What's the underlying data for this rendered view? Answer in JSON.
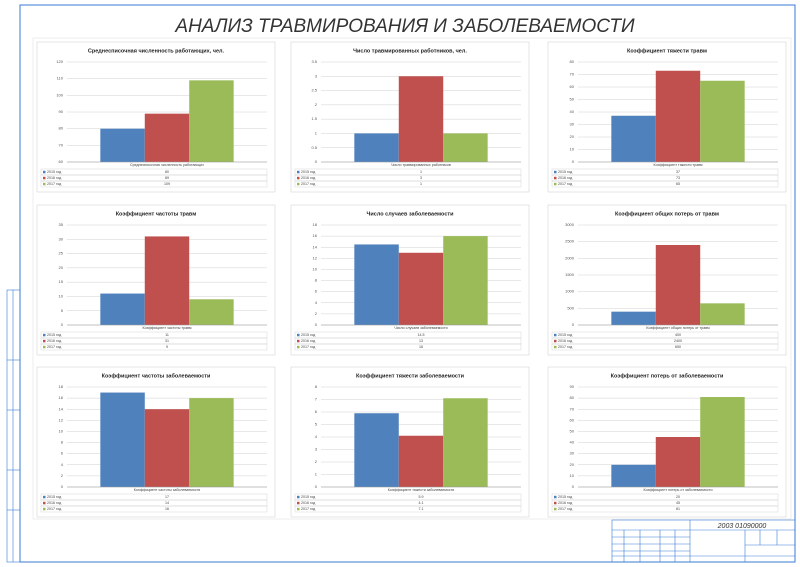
{
  "header": {
    "title": "АНАЛИЗ ТРАВМИРОВАНИЯ И ЗАБОЛЕВАЕМОСТИ"
  },
  "stamp": {
    "code": "2003 01090000"
  },
  "chart_data": [
    {
      "type": "bar",
      "title": "Среднесписочная численность работающих, чел.",
      "categories": [
        "Среднесписочная численность работающих"
      ],
      "series": [
        {
          "name": "2015 год",
          "color": "#4f81bd",
          "values": [
            80
          ]
        },
        {
          "name": "2016 год",
          "color": "#c0504d",
          "values": [
            89
          ]
        },
        {
          "name": "2017 год",
          "color": "#9bbb59",
          "values": [
            109
          ]
        }
      ],
      "ylim": [
        60,
        120
      ],
      "yticks": [
        60,
        70,
        80,
        90,
        100,
        110,
        120
      ],
      "grid": true
    },
    {
      "type": "bar",
      "title": "Число травмированных работников, чел.",
      "categories": [
        "Число травмированных работников"
      ],
      "series": [
        {
          "name": "2015 год",
          "color": "#4f81bd",
          "values": [
            1
          ]
        },
        {
          "name": "2016 год",
          "color": "#c0504d",
          "values": [
            3
          ]
        },
        {
          "name": "2017 год",
          "color": "#9bbb59",
          "values": [
            1
          ]
        }
      ],
      "ylim": [
        0,
        3.5
      ],
      "yticks": [
        0,
        0.5,
        1,
        1.5,
        2,
        2.5,
        3,
        3.5
      ],
      "grid": true
    },
    {
      "type": "bar",
      "title": "Коэффициент тяжести травм",
      "categories": [
        "Коэффициент тяжести травм"
      ],
      "series": [
        {
          "name": "2015 год",
          "color": "#4f81bd",
          "values": [
            37
          ]
        },
        {
          "name": "2016 год",
          "color": "#c0504d",
          "values": [
            73
          ]
        },
        {
          "name": "2017 год",
          "color": "#9bbb59",
          "values": [
            65
          ]
        }
      ],
      "ylim": [
        0,
        80
      ],
      "yticks": [
        0,
        10,
        20,
        30,
        40,
        50,
        60,
        70,
        80
      ],
      "grid": true
    },
    {
      "type": "bar",
      "title": "Коэффициент частоты травм",
      "categories": [
        "Коэффициент частоты травм"
      ],
      "series": [
        {
          "name": "2015 год",
          "color": "#4f81bd",
          "values": [
            11
          ]
        },
        {
          "name": "2016 год",
          "color": "#c0504d",
          "values": [
            31
          ]
        },
        {
          "name": "2017 год",
          "color": "#9bbb59",
          "values": [
            9
          ]
        }
      ],
      "ylim": [
        0,
        35
      ],
      "yticks": [
        0,
        5,
        10,
        15,
        20,
        25,
        30,
        35
      ],
      "grid": true
    },
    {
      "type": "bar",
      "title": "Число случаев заболеваемости",
      "categories": [
        "Число случаев заболеваемости"
      ],
      "series": [
        {
          "name": "2015 год",
          "color": "#4f81bd",
          "values": [
            14.5
          ]
        },
        {
          "name": "2016 год",
          "color": "#c0504d",
          "values": [
            13
          ]
        },
        {
          "name": "2017 год",
          "color": "#9bbb59",
          "values": [
            16
          ]
        }
      ],
      "ylim": [
        0,
        18
      ],
      "yticks": [
        0,
        2,
        4,
        6,
        8,
        10,
        12,
        14,
        16,
        18
      ],
      "grid": true
    },
    {
      "type": "bar",
      "title": "Коэффициент общих потерь от травм",
      "categories": [
        "Коэффициент общих потерь от травм"
      ],
      "series": [
        {
          "name": "2015 год",
          "color": "#4f81bd",
          "values": [
            400
          ]
        },
        {
          "name": "2016 год",
          "color": "#c0504d",
          "values": [
            2400
          ]
        },
        {
          "name": "2017 год",
          "color": "#9bbb59",
          "values": [
            650
          ]
        }
      ],
      "ylim": [
        0,
        3000
      ],
      "yticks": [
        0,
        500,
        1000,
        1500,
        2000,
        2500,
        3000
      ],
      "grid": true
    },
    {
      "type": "bar",
      "title": "Коэффициент частоты заболеваемости",
      "categories": [
        "Коэффициент частоты заболеваемости"
      ],
      "series": [
        {
          "name": "2015 год",
          "color": "#4f81bd",
          "values": [
            17
          ]
        },
        {
          "name": "2016 год",
          "color": "#c0504d",
          "values": [
            14
          ]
        },
        {
          "name": "2017 год",
          "color": "#9bbb59",
          "values": [
            16
          ]
        }
      ],
      "ylim": [
        0,
        18
      ],
      "yticks": [
        0,
        2,
        4,
        6,
        8,
        10,
        12,
        14,
        16,
        18
      ],
      "grid": true
    },
    {
      "type": "bar",
      "title": "Коэффициент тяжести заболеваемости",
      "categories": [
        "Коэффициент тяжести заболеваемости"
      ],
      "series": [
        {
          "name": "2015 год",
          "color": "#4f81bd",
          "values": [
            5.9
          ]
        },
        {
          "name": "2016 год",
          "color": "#c0504d",
          "values": [
            4.1
          ]
        },
        {
          "name": "2017 год",
          "color": "#9bbb59",
          "values": [
            7.1
          ]
        }
      ],
      "ylim": [
        0,
        8
      ],
      "yticks": [
        0,
        1,
        2,
        3,
        4,
        5,
        6,
        7,
        8
      ],
      "grid": true
    },
    {
      "type": "bar",
      "title": "Коэффициент потерь от заболеваемости",
      "categories": [
        "Коэффициент потерь от заболеваемости"
      ],
      "series": [
        {
          "name": "2015 год",
          "color": "#4f81bd",
          "values": [
            20
          ]
        },
        {
          "name": "2016 год",
          "color": "#c0504d",
          "values": [
            45
          ]
        },
        {
          "name": "2017 год",
          "color": "#9bbb59",
          "values": [
            81
          ]
        }
      ],
      "ylim": [
        0,
        90
      ],
      "yticks": [
        0,
        10,
        20,
        30,
        40,
        50,
        60,
        70,
        80,
        90
      ],
      "grid": true
    }
  ]
}
